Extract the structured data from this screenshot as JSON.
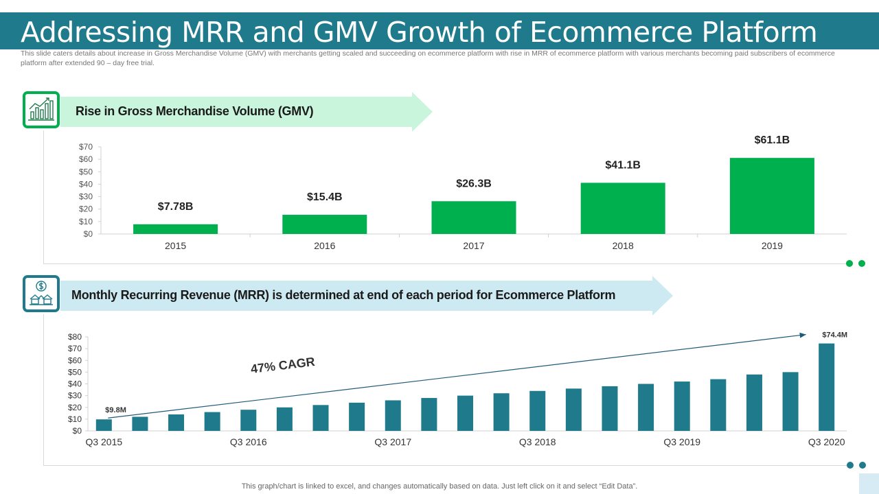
{
  "title": "Addressing MRR and GMV Growth of Ecommerce Platform",
  "subtitle": "This slide caters details about increase in Gross Merchandise Volume (GMV) with merchants getting scaled and succeeding on ecommerce platform with rise in MRR of ecommerce platform with various merchants becoming paid subscribers of ecommerce platform after extended 90 – day free trial.",
  "gmv_section": {
    "heading": "Rise in Gross Merchandise Volume (GMV)",
    "icon": "growth-chart-icon"
  },
  "mrr_section": {
    "heading": "Monthly Recurring Revenue (MRR) is determined at end of each period for Ecommerce Platform",
    "icon": "dollar-house-icon"
  },
  "footnote": "This graph/chart is linked to excel,  and changes automatically based on data. Just left click on it and select “Edit Data”.",
  "colors": {
    "title_bar": "#1f7a8c",
    "gmv_bar": "#00b04f",
    "mrr_bar": "#1f7a8c",
    "gmv_banner": "#c8f5dc",
    "mrr_banner": "#cdeaf2"
  },
  "chart_data": [
    {
      "type": "bar",
      "categories": [
        "2015",
        "2016",
        "2017",
        "2018",
        "2019"
      ],
      "values": [
        7.78,
        15.4,
        26.3,
        41.1,
        61.1
      ],
      "data_labels": [
        "$7.78B",
        "$15.4B",
        "$26.3B",
        "$41.1B",
        "$61.1B"
      ],
      "y_ticks": [
        "$0",
        "$10",
        "$20",
        "$30",
        "$40",
        "$50",
        "$60",
        "$70"
      ],
      "ylim": [
        0,
        70
      ],
      "grid": false
    },
    {
      "type": "bar",
      "categories": [
        "Q3 2015",
        "Q4 2015",
        "Q1 2016",
        "Q2 2016",
        "Q3 2016",
        "Q4 2016",
        "Q1 2017",
        "Q2 2017",
        "Q3 2017",
        "Q4 2017",
        "Q1 2018",
        "Q2 2018",
        "Q3 2018",
        "Q4 2018",
        "Q1 2019",
        "Q2 2019",
        "Q3 2019",
        "Q4 2019",
        "Q1 2020",
        "Q2 2020",
        "Q3 2020"
      ],
      "x_tick_labels": [
        "Q3 2015",
        "",
        "",
        "",
        "Q3 2016",
        "",
        "",
        "",
        "Q3 2017",
        "",
        "",
        "",
        "Q3 2018",
        "",
        "",
        "",
        "Q3 2019",
        "",
        "",
        "",
        "Q3 2020"
      ],
      "values": [
        9.8,
        12,
        14,
        16,
        18,
        20,
        22,
        24,
        26,
        28,
        30,
        32,
        34,
        36,
        38,
        40,
        42,
        44,
        48,
        50,
        74.4
      ],
      "data_labels": {
        "first": "$9.8M",
        "last": "$74.4M"
      },
      "y_ticks": [
        "$0",
        "$10",
        "$20",
        "$30",
        "$40",
        "$50",
        "$60",
        "$70",
        "$80"
      ],
      "ylim": [
        0,
        80
      ],
      "annotation": "47% CAGR",
      "grid": false
    }
  ]
}
